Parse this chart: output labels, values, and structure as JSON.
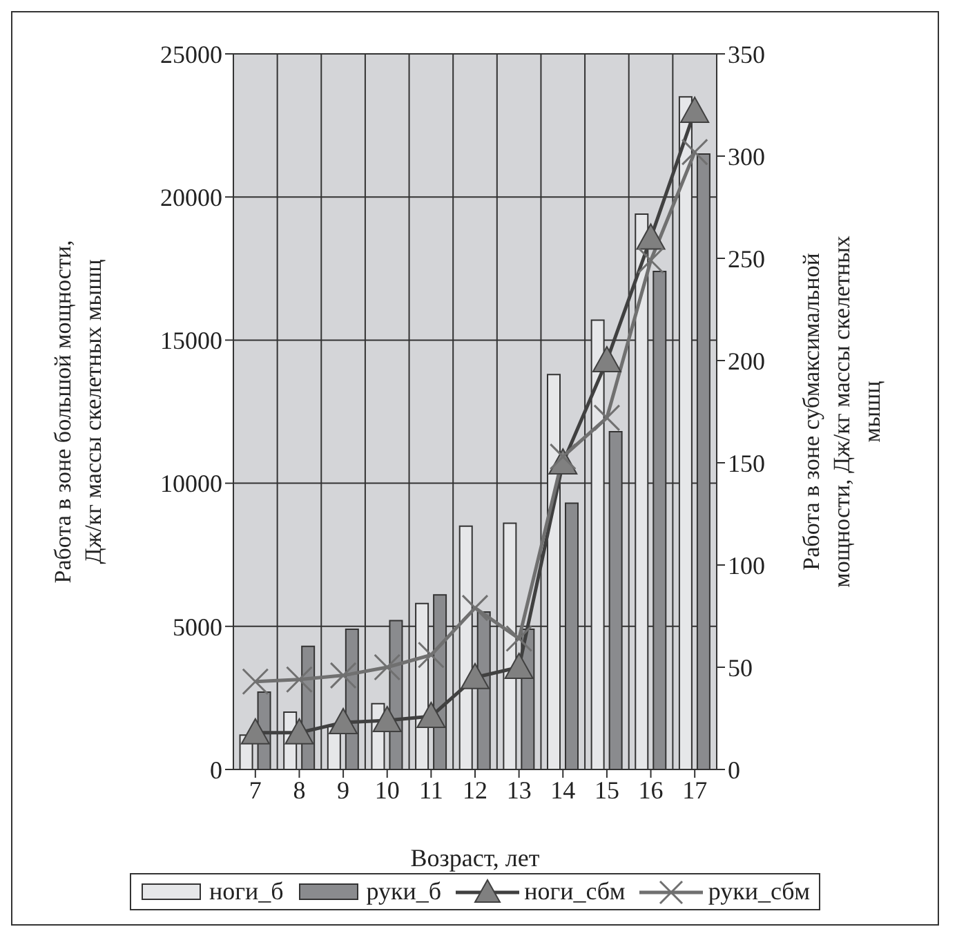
{
  "chart_data": {
    "type": "bar",
    "xlabel": "Возраст, лет",
    "ylabel": "Работа в зоне большой мощности, Дж/кг массы скелетных мышц",
    "y2label": "Работа в зоне субмаксимальной мощности, Дж/кг массы скелетных мышц",
    "categories": [
      "7",
      "8",
      "9",
      "10",
      "11",
      "12",
      "13",
      "14",
      "15",
      "16",
      "17"
    ],
    "series": [
      {
        "name": "ноги_б",
        "color": "#e6e7e9",
        "values": [
          1200,
          2000,
          1500,
          2300,
          5800,
          8500,
          8600,
          13800,
          15700,
          19400,
          23500
        ]
      },
      {
        "name": "руки_б",
        "color": "#8a8b8e",
        "values": [
          2700,
          4300,
          4900,
          5200,
          6100,
          5500,
          4900,
          9300,
          11800,
          17400,
          21500
        ]
      },
      {
        "name": "ноги_сбм",
        "type": "line",
        "axis": "y2",
        "marker": "triangle",
        "color": "#404040",
        "values": [
          18,
          18,
          23,
          24,
          26,
          45,
          50,
          150,
          200,
          260,
          322
        ]
      },
      {
        "name": "руки_сбм",
        "type": "line",
        "axis": "y2",
        "marker": "cross",
        "color": "#707070",
        "values": [
          43,
          44,
          46,
          50,
          56,
          79,
          64,
          153,
          172,
          249,
          302
        ]
      }
    ],
    "ylim": [
      0,
      25000
    ],
    "yticks": [
      0,
      5000,
      10000,
      15000,
      20000,
      25000
    ],
    "y2lim": [
      0,
      350
    ],
    "y2ticks": [
      0,
      50,
      100,
      150,
      200,
      250,
      300,
      350
    ],
    "grid": true,
    "legend": "bottom"
  }
}
